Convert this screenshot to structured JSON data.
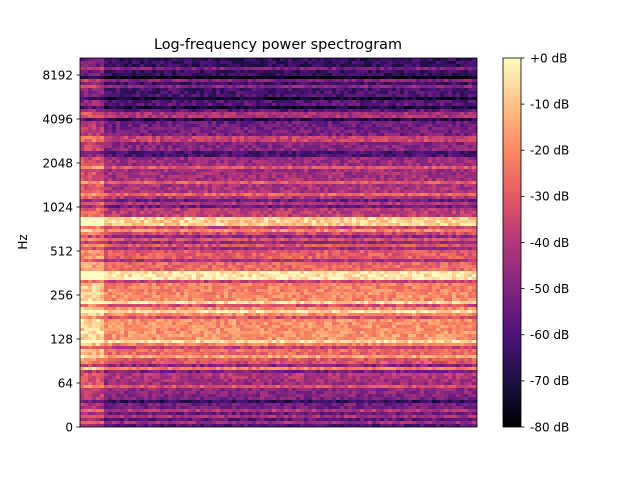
{
  "chart_data": {
    "type": "heatmap",
    "title": "Log-frequency power spectrogram",
    "xlabel": "",
    "ylabel": "Hz",
    "y_scale": "log (symlog, 0 at bottom)",
    "y_tick_labels": [
      "0",
      "64",
      "128",
      "256",
      "512",
      "1024",
      "2048",
      "4096",
      "8192"
    ],
    "x_tick_labels": [],
    "grid": false,
    "colormap": "magma",
    "colorbar": {
      "range_db": [
        -80,
        0
      ],
      "tick_labels": [
        "+0 dB",
        "-10 dB",
        "-20 dB",
        "-30 dB",
        "-40 dB",
        "-50 dB",
        "-60 dB",
        "-70 dB",
        "-80 dB"
      ]
    },
    "bands": [
      {
        "label": "0",
        "level_db": -60
      },
      {
        "label": "64",
        "level_db": -45
      },
      {
        "label": "128",
        "level_db": -18
      },
      {
        "label": "256",
        "level_db": -20
      },
      {
        "label": "512",
        "level_db": -30
      },
      {
        "label": "1024",
        "level_db": -40
      },
      {
        "label": "2048",
        "level_db": -45
      },
      {
        "label": "4096",
        "level_db": -55
      },
      {
        "label": "8192",
        "level_db": -65
      }
    ]
  }
}
